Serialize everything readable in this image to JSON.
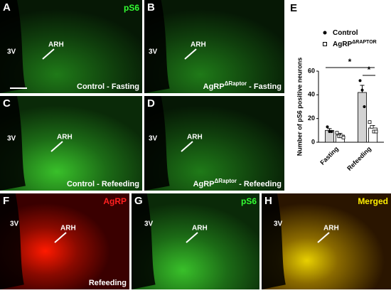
{
  "panels": [
    {
      "letter": "A",
      "stain": "pS6",
      "ventricle": "3V",
      "region": "ARH",
      "caption": {
        "text": "Control - Fasting"
      }
    },
    {
      "letter": "B",
      "ventricle": "3V",
      "region": "ARH",
      "caption": {
        "text": "AgRP",
        "sup": "ΔRaptor",
        "rest": " - Fasting"
      }
    },
    {
      "letter": "C",
      "ventricle": "3V",
      "region": "ARH",
      "caption": {
        "text": "Control - Refeeding"
      }
    },
    {
      "letter": "D",
      "ventricle": "3V",
      "region": "ARH",
      "caption": {
        "text": "AgRP",
        "sup": "ΔRaptor",
        "rest": " - Refeeding"
      }
    },
    {
      "letter": "F",
      "stain": "AgRP",
      "ventricle": "3V",
      "region": "ARH",
      "caption": {
        "text": "Refeeding"
      }
    },
    {
      "letter": "G",
      "stain": "pS6",
      "ventricle": "3V",
      "region": "ARH"
    },
    {
      "letter": "H",
      "stain": "Merged",
      "ventricle": "3V",
      "region": "ARH"
    }
  ],
  "chart_data": {
    "type": "bar",
    "letter": "E",
    "y_label": "Number of pS6 positive neurons",
    "categories": [
      "Fasting",
      "Refeeding"
    ],
    "series": [
      {
        "name": "Control",
        "color": "#d3d3d3",
        "marker": "circle",
        "values": [
          10,
          42
        ],
        "errors": [
          1.5,
          6
        ],
        "points": [
          [
            13,
            9,
            9
          ],
          [
            52,
            44,
            30
          ]
        ]
      },
      {
        "name": "AgRP",
        "superscript": "ΔRAPTOR",
        "color": "#ffffff",
        "marker": "square",
        "values": [
          6,
          12
        ],
        "errors": [
          1.5,
          2
        ],
        "points": [
          [
            8,
            5,
            5,
            4
          ],
          [
            17,
            13,
            9,
            9
          ]
        ]
      }
    ],
    "ylim": [
      0,
      60
    ],
    "yticks": [
      0,
      20,
      40,
      60
    ],
    "annotations": [
      "*",
      "*"
    ]
  }
}
